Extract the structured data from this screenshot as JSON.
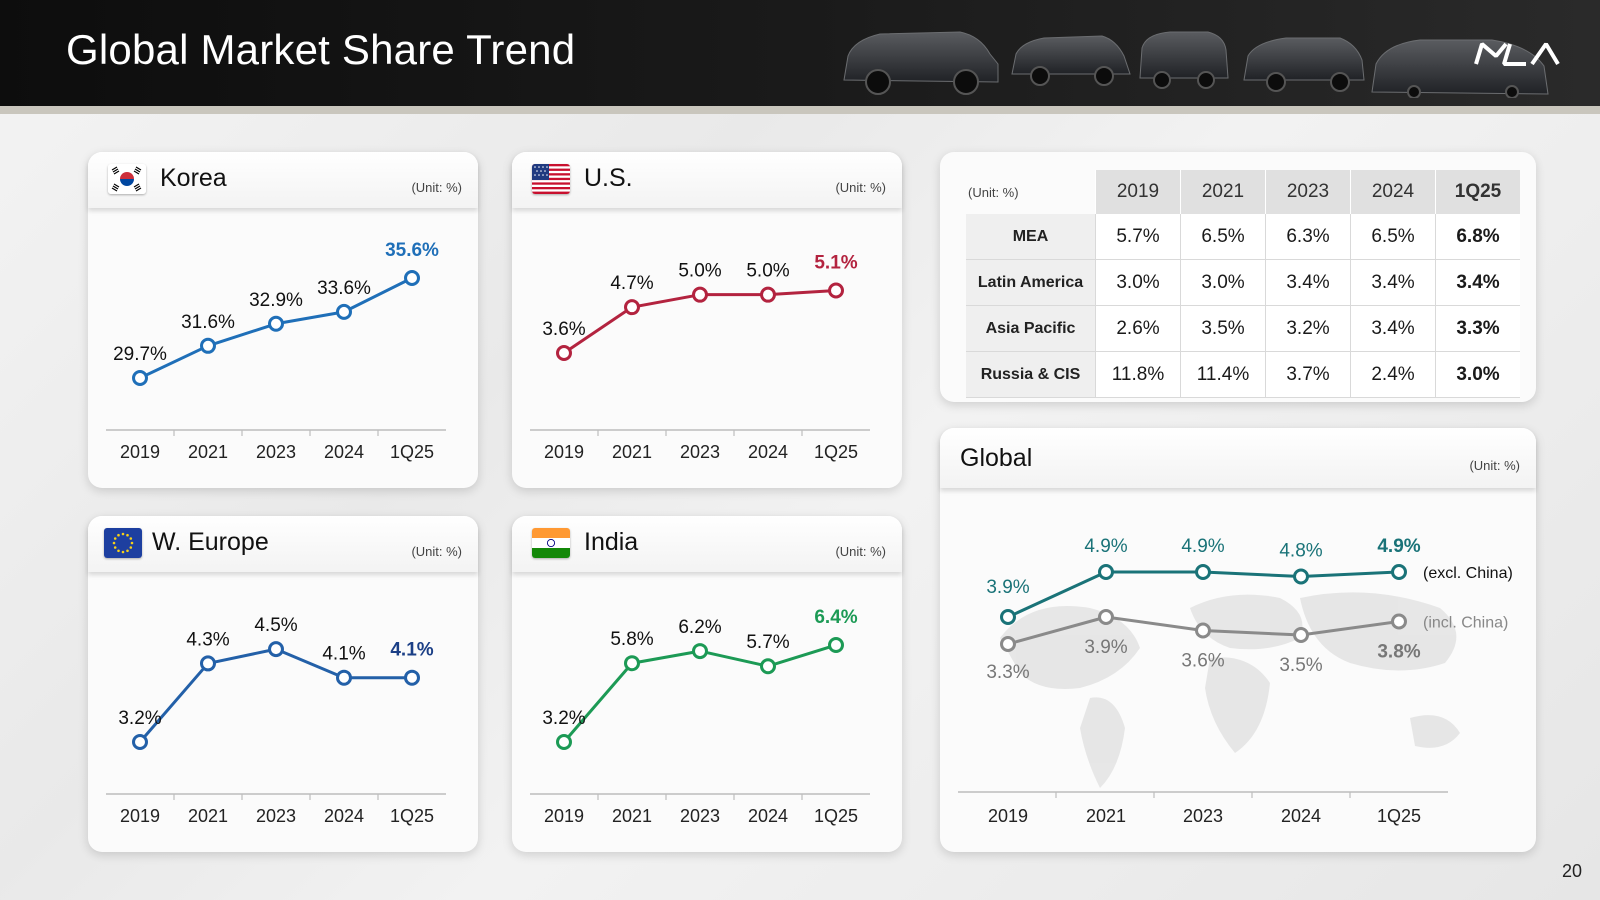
{
  "header": {
    "title": "Global Market Share Trend",
    "page_number": "20"
  },
  "colors": {
    "korea": "#1f6fb8",
    "us": "#b3233f",
    "weurope": "#2360a8",
    "india": "#1c9a55",
    "global_excl": "#1a7378",
    "global_incl": "#8a8a8a"
  },
  "cards": {
    "korea": {
      "title": "Korea",
      "unit": "(Unit: %)"
    },
    "us": {
      "title": "U.S.",
      "unit": "(Unit: %)"
    },
    "weurope": {
      "title": "W. Europe",
      "unit": "(Unit: %)"
    },
    "india": {
      "title": "India",
      "unit": "(Unit: %)"
    },
    "global": {
      "title": "Global",
      "unit": "(Unit: %)"
    }
  },
  "chart_data": [
    {
      "id": "korea",
      "type": "line",
      "categories": [
        "2019",
        "2021",
        "2023",
        "2024",
        "1Q25"
      ],
      "series": [
        {
          "values": [
            29.7,
            31.6,
            32.9,
            33.6,
            35.6
          ],
          "labels": [
            "29.7%",
            "31.6%",
            "32.9%",
            "33.6%",
            "35.6%"
          ]
        }
      ]
    },
    {
      "id": "us",
      "type": "line",
      "categories": [
        "2019",
        "2021",
        "2023",
        "2024",
        "1Q25"
      ],
      "series": [
        {
          "values": [
            3.6,
            4.7,
            5.0,
            5.0,
            5.1
          ],
          "labels": [
            "3.6%",
            "4.7%",
            "5.0%",
            "5.0%",
            "5.1%"
          ]
        }
      ]
    },
    {
      "id": "weurope",
      "type": "line",
      "categories": [
        "2019",
        "2021",
        "2023",
        "2024",
        "1Q25"
      ],
      "series": [
        {
          "values": [
            3.2,
            4.3,
            4.5,
            4.1,
            4.1
          ],
          "labels": [
            "3.2%",
            "4.3%",
            "4.5%",
            "4.1%",
            "4.1%"
          ]
        }
      ]
    },
    {
      "id": "india",
      "type": "line",
      "categories": [
        "2019",
        "2021",
        "2023",
        "2024",
        "1Q25"
      ],
      "series": [
        {
          "values": [
            3.2,
            5.8,
            6.2,
            5.7,
            6.4
          ],
          "labels": [
            "3.2%",
            "5.8%",
            "6.2%",
            "5.7%",
            "6.4%"
          ]
        }
      ]
    },
    {
      "id": "global",
      "type": "line",
      "categories": [
        "2019",
        "2021",
        "2023",
        "2024",
        "1Q25"
      ],
      "series": [
        {
          "name": "(excl. China)",
          "values": [
            3.9,
            4.9,
            4.9,
            4.8,
            4.9
          ],
          "labels": [
            "3.9%",
            "4.9%",
            "4.9%",
            "4.8%",
            "4.9%"
          ]
        },
        {
          "name": "(incl. China)",
          "values": [
            3.3,
            3.9,
            3.6,
            3.5,
            3.8
          ],
          "labels": [
            "3.3%",
            "3.9%",
            "3.6%",
            "3.5%",
            "3.8%"
          ]
        }
      ]
    },
    {
      "id": "regions",
      "type": "table",
      "unit": "(Unit: %)",
      "columns": [
        "2019",
        "2021",
        "2023",
        "2024",
        "1Q25"
      ],
      "rows": [
        {
          "region": "MEA",
          "values": [
            "5.7%",
            "6.5%",
            "6.3%",
            "6.5%",
            "6.8%"
          ]
        },
        {
          "region": "Latin America",
          "values": [
            "3.0%",
            "3.0%",
            "3.4%",
            "3.4%",
            "3.4%"
          ]
        },
        {
          "region": "Asia Pacific",
          "values": [
            "2.6%",
            "3.5%",
            "3.2%",
            "3.4%",
            "3.3%"
          ]
        },
        {
          "region": "Russia & CIS",
          "values": [
            "11.8%",
            "11.4%",
            "3.7%",
            "2.4%",
            "3.0%"
          ]
        }
      ]
    }
  ]
}
